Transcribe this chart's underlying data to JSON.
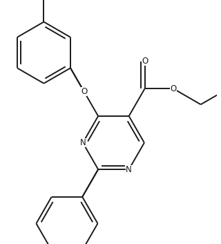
{
  "background_color": "#ffffff",
  "line_color": "#1a1a1a",
  "line_width": 1.4,
  "font_size": 8.5,
  "fig_width": 3.2,
  "fig_height": 3.53,
  "dpi": 100,
  "xlim": [
    -0.3,
    1.45
  ],
  "ylim": [
    -1.35,
    0.65
  ]
}
